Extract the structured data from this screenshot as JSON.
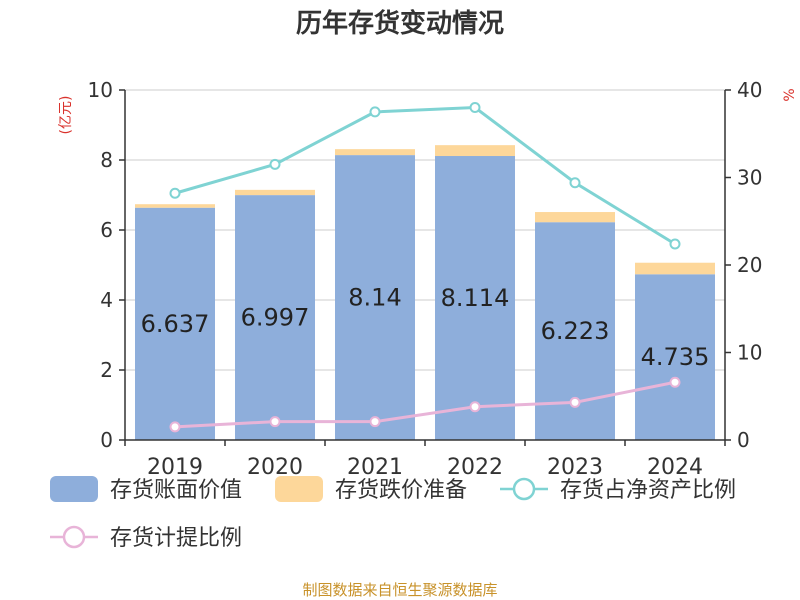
{
  "title": "历年存货变动情况",
  "left_axis_unit": "(亿元)",
  "right_axis_unit": "%",
  "source": "制图数据来自恒生聚源数据库",
  "colors": {
    "bar_book": "#8eaedb",
    "bar_reserve": "#fdd79a",
    "line_ratio": "#7fd3d3",
    "line_provision": "#e8b4d8",
    "unit_red": "#d9322c",
    "source_gold": "#c8922a",
    "grid": "#cccccc",
    "axis": "#333333"
  },
  "chart_data": {
    "type": "bar",
    "categories": [
      "2019",
      "2020",
      "2021",
      "2022",
      "2023",
      "2024"
    ],
    "series": [
      {
        "name": "存货账面价值",
        "type": "bar",
        "stack": "inv",
        "axis": "left",
        "values": [
          6.637,
          6.997,
          8.14,
          8.114,
          6.223,
          4.735
        ],
        "labels": [
          "6.637",
          "6.997",
          "8.14",
          "8.114",
          "6.223",
          "4.735"
        ]
      },
      {
        "name": "存货跌价准备",
        "type": "bar",
        "stack": "inv",
        "axis": "left",
        "values": [
          0.1,
          0.15,
          0.17,
          0.31,
          0.29,
          0.33
        ]
      },
      {
        "name": "存货占净资产比例",
        "type": "line",
        "axis": "right",
        "values": [
          28.2,
          31.5,
          37.5,
          38.0,
          29.4,
          22.4
        ]
      },
      {
        "name": "存货计提比例",
        "type": "line",
        "axis": "right",
        "values": [
          1.5,
          2.1,
          2.1,
          3.8,
          4.3,
          6.6
        ]
      }
    ],
    "left_axis": {
      "ylim": [
        0,
        10
      ],
      "ticks": [
        0,
        2,
        4,
        6,
        8,
        10
      ]
    },
    "right_axis": {
      "ylim": [
        0,
        40
      ],
      "ticks": [
        0,
        10,
        20,
        30,
        40
      ]
    },
    "grid": true,
    "legend_position": "bottom"
  }
}
